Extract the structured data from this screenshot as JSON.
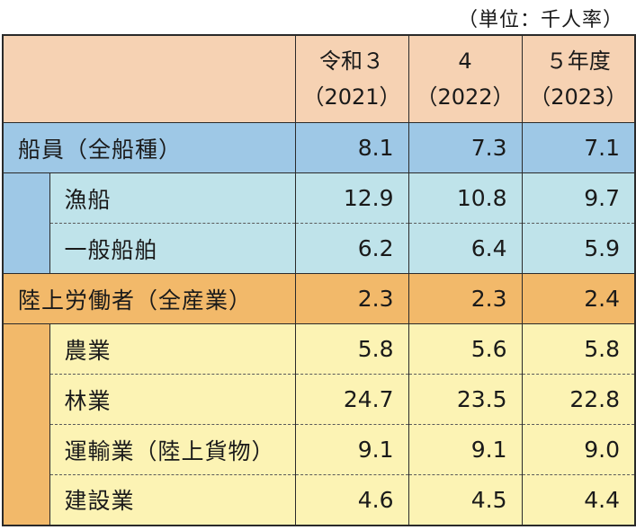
{
  "unit_note": "（単位：千人率）",
  "columns": [
    {
      "line1": "令和３",
      "line2": "（2021）"
    },
    {
      "line1": "4",
      "line2": "（2022）"
    },
    {
      "line1": "５年度",
      "line2": "（2023）"
    }
  ],
  "seafarers": {
    "label": "船員（全船種）",
    "values": [
      "8.1",
      "7.3",
      "7.1"
    ],
    "subrows": [
      {
        "label": "漁船",
        "values": [
          "12.9",
          "10.8",
          "9.7"
        ]
      },
      {
        "label": "一般船舶",
        "values": [
          "6.2",
          "6.4",
          "5.9"
        ]
      }
    ]
  },
  "land_workers": {
    "label": "陸上労働者（全産業）",
    "values": [
      "2.3",
      "2.3",
      "2.4"
    ],
    "subrows": [
      {
        "label": "農業",
        "values": [
          "5.8",
          "5.6",
          "5.8"
        ]
      },
      {
        "label": "林業",
        "values": [
          "24.7",
          "23.5",
          "22.8"
        ]
      },
      {
        "label": "運輸業（陸上貨物）",
        "values": [
          "9.1",
          "9.1",
          "9.0"
        ]
      },
      {
        "label": "建設業",
        "values": [
          "4.6",
          "4.5",
          "4.4"
        ]
      }
    ]
  },
  "colors": {
    "header_bg": "#f6d2b3",
    "seafarer_section": "#9ec8e6",
    "seafarer_sub": "#bfe3ea",
    "land_section": "#f2b96a",
    "land_sub": "#fcf3b4"
  }
}
